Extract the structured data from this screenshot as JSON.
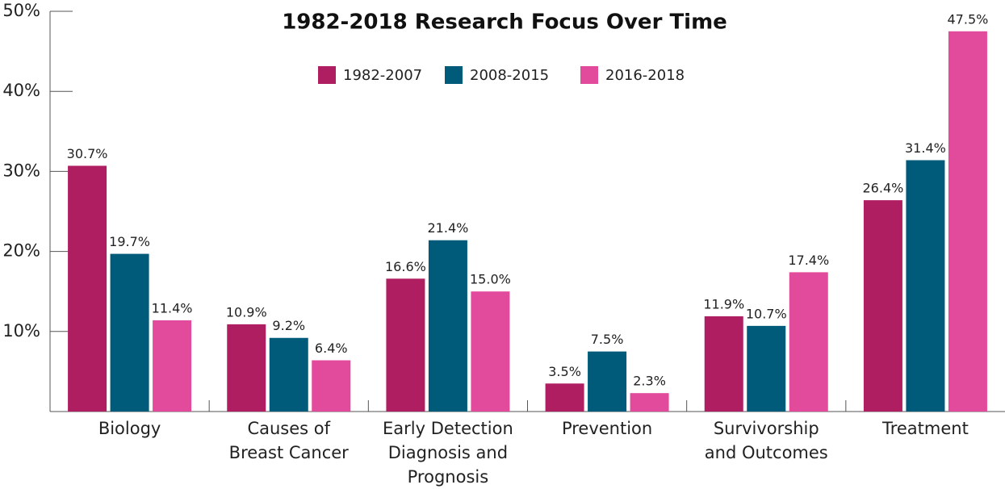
{
  "chart_data": {
    "type": "bar",
    "title": "1982-2018 Research Focus Over Time",
    "categories": [
      "Biology",
      "Causes of\nBreast Cancer",
      "Early Detection\nDiagnosis and\nPrognosis",
      "Prevention",
      "Survivorship\nand Outcomes",
      "Treatment"
    ],
    "series": [
      {
        "name": "1982-2007",
        "color": "#b01e62",
        "values": [
          30.7,
          10.9,
          16.6,
          3.5,
          11.9,
          26.4
        ],
        "value_labels": [
          "30.7%",
          "10.9%",
          "16.6%",
          "3.5%",
          "11.9%",
          "26.4%"
        ]
      },
      {
        "name": "2008-2015",
        "color": "#005a7a",
        "values": [
          19.7,
          9.2,
          21.4,
          7.5,
          10.7,
          31.4
        ],
        "value_labels": [
          "19.7%",
          "9.2%",
          "21.4%",
          "7.5%",
          "10.7%",
          "31.4%"
        ]
      },
      {
        "name": "2016-2018",
        "color": "#e24a9c",
        "values": [
          11.4,
          6.4,
          15.0,
          2.3,
          17.4,
          47.5
        ],
        "value_labels": [
          "11.4%",
          "6.4%",
          "15.0%",
          "2.3%",
          "17.4%",
          "47.5%"
        ]
      }
    ],
    "ylim": [
      0,
      50
    ],
    "yticks": [
      {
        "value": 10,
        "label": "10%"
      },
      {
        "value": 20,
        "label": "20%"
      },
      {
        "value": 30,
        "label": "30%"
      },
      {
        "value": 40,
        "label": "40%"
      },
      {
        "value": 50,
        "label": "50%"
      }
    ],
    "legend": "top"
  }
}
